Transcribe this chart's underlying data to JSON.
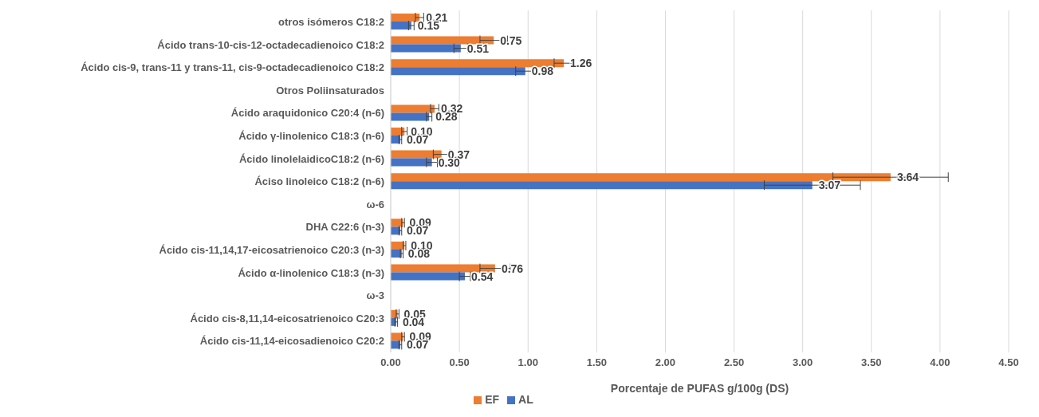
{
  "chart_data": {
    "type": "bar",
    "orientation": "horizontal",
    "xlabel": "Porcentaje de PUFAS g/100g (DS)",
    "categories": [
      "otros isómeros C18:2",
      "Ácido trans-10-cis-12-octadecadienoico C18:2",
      "Ácido cis-9, trans-11 y trans-11, cis-9-octadecadienoico C18:2",
      "Otros Poliinsaturados",
      "Ácido araquidonico C20:4 (n-6)",
      "Ácido γ-linolenico C18:3 (n-6)",
      "Ácido linolelaidicoC18:2 (n-6)",
      "Áciso linoleico C18:2 (n-6)",
      "ω-6",
      "DHA C22:6 (n-3)",
      "Ácido cis-11,14,17-eicosatrienoico C20:3 (n-3)",
      "Ácido α-linolenico C18:3 (n-3)",
      "ω-3",
      "Ácido cis-8,11,14-eicosatrienoico C20:3",
      "Ácido cis-11,14-eicosadienoico C20:2"
    ],
    "series": [
      {
        "name": "EF",
        "color": "#ed7d31",
        "values": [
          0.21,
          0.75,
          1.26,
          null,
          0.32,
          0.1,
          0.37,
          3.64,
          null,
          0.09,
          0.1,
          0.76,
          null,
          0.05,
          0.09
        ],
        "errors": [
          0.03,
          0.1,
          0.07,
          null,
          0.03,
          0.02,
          0.06,
          0.42,
          null,
          0.01,
          0.01,
          0.11,
          null,
          0.01,
          0.01
        ],
        "value_labels": [
          "0.21",
          "0.75",
          "1.26",
          null,
          "0.32",
          "0.10",
          "0.37",
          "3.64",
          null,
          "0.09",
          "0.10",
          "0.76",
          null,
          "0.05",
          "0.09"
        ]
      },
      {
        "name": "AL",
        "color": "#4472c4",
        "values": [
          0.15,
          0.51,
          0.98,
          null,
          0.28,
          0.07,
          0.3,
          3.07,
          null,
          0.07,
          0.08,
          0.54,
          null,
          0.04,
          0.07
        ],
        "errors": [
          0.02,
          0.05,
          0.07,
          null,
          0.02,
          0.01,
          0.04,
          0.35,
          null,
          0.01,
          0.01,
          0.04,
          null,
          0.01,
          0.01
        ],
        "value_labels": [
          "0.15",
          "0.51",
          "0.98",
          null,
          "0.28",
          "0.07",
          "0.30",
          "3.07",
          null,
          "0.07",
          "0.08",
          "0.54",
          null,
          "0.04",
          "0.07"
        ]
      }
    ],
    "xlim": [
      0,
      4.5
    ],
    "xticks": [
      {
        "value": 0,
        "label": "0.00"
      },
      {
        "value": 0.5,
        "label": "0.50"
      },
      {
        "value": 1,
        "label": "1.00"
      },
      {
        "value": 1.5,
        "label": "1.50"
      },
      {
        "value": 2,
        "label": "2.00"
      },
      {
        "value": 2.5,
        "label": "2.50"
      },
      {
        "value": 3,
        "label": "3.00"
      },
      {
        "value": 3.5,
        "label": "3.50"
      },
      {
        "value": 4,
        "label": "4.00"
      },
      {
        "value": 4.5,
        "label": "4.50"
      }
    ],
    "grid": "x",
    "legend": "bottom"
  }
}
